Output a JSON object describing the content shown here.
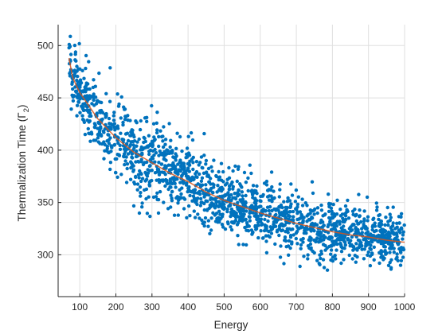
{
  "chart_data": {
    "type": "scatter",
    "xlabel": "Energy",
    "ylabel": "Thermalization Time (Γ",
    "ylabel_subscript": "2",
    "ylabel_close": ")",
    "xlim": [
      40,
      1000
    ],
    "ylim": [
      260,
      520
    ],
    "xticks": [
      100,
      200,
      300,
      400,
      500,
      600,
      700,
      800,
      900,
      1000
    ],
    "yticks": [
      300,
      350,
      400,
      450,
      500
    ],
    "grid": true,
    "series": [
      {
        "kind": "points",
        "color": "#0072bd",
        "x_range": [
          70,
          1000
        ],
        "point_count": 1800,
        "note_values": [
          [
            70,
            488
          ],
          [
            80,
            470
          ],
          [
            90,
            462
          ],
          [
            100,
            455
          ],
          [
            120,
            445
          ],
          [
            150,
            430
          ],
          [
            200,
            412
          ],
          [
            250,
            398
          ],
          [
            300,
            388
          ],
          [
            350,
            378
          ],
          [
            400,
            370
          ],
          [
            450,
            360
          ],
          [
            500,
            352
          ],
          [
            550,
            346
          ],
          [
            600,
            340
          ],
          [
            650,
            335
          ],
          [
            700,
            330
          ],
          [
            750,
            326
          ],
          [
            800,
            322
          ],
          [
            850,
            319
          ],
          [
            900,
            317
          ],
          [
            950,
            314
          ],
          [
            1000,
            312
          ]
        ],
        "spread": [
          [
            70,
            14
          ],
          [
            150,
            18
          ],
          [
            300,
            20
          ],
          [
            500,
            15
          ],
          [
            700,
            15
          ],
          [
            1000,
            12
          ]
        ]
      },
      {
        "kind": "fit-line",
        "color": "#d95319",
        "x": [
          70,
          80,
          90,
          100,
          120,
          150,
          200,
          250,
          300,
          350,
          400,
          450,
          500,
          550,
          600,
          650,
          700,
          750,
          800,
          850,
          900,
          950,
          1000
        ],
        "y": [
          488,
          470,
          462,
          455,
          445,
          430,
          412,
          398,
          388,
          378,
          370,
          360,
          352,
          346,
          340,
          335,
          330,
          326,
          322,
          319,
          317,
          314,
          312
        ]
      }
    ]
  }
}
